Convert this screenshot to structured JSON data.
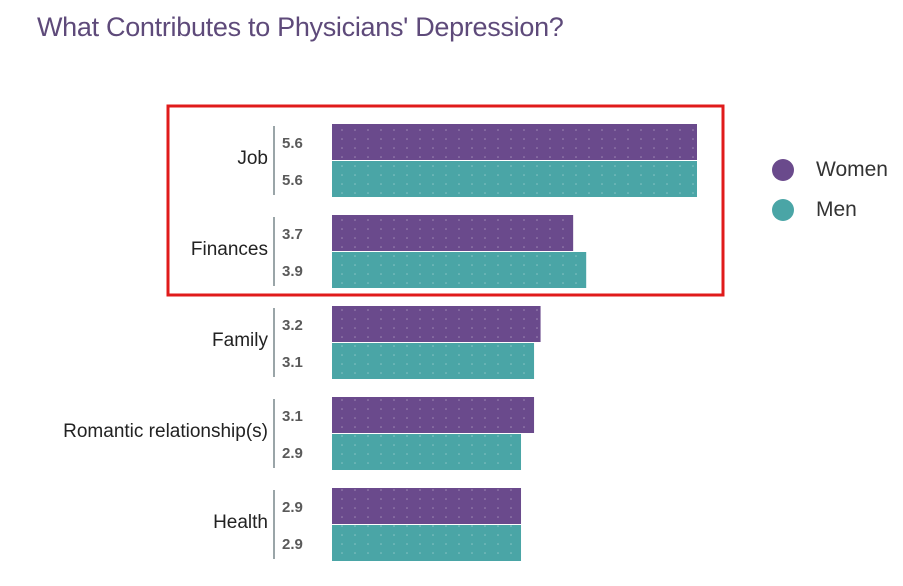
{
  "title": "What Contributes to Physicians' Depression?",
  "colors": {
    "women": "#6a4a8c",
    "men": "#4aa5a6",
    "highlight": "#e01b1b",
    "value_text": "#5a5a5a",
    "divider": "#9aa5a8"
  },
  "legend": [
    {
      "name": "Women",
      "color": "#6a4a8c"
    },
    {
      "name": "Men",
      "color": "#4aa5a6"
    }
  ],
  "chart_data": {
    "type": "bar",
    "orientation": "horizontal",
    "title": "What Contributes to Physicians' Depression?",
    "categories": [
      "Job",
      "Finances",
      "Family",
      "Romantic relationship(s)",
      "Health"
    ],
    "series": [
      {
        "name": "Women",
        "values": [
          5.6,
          3.7,
          3.2,
          3.1,
          2.9
        ]
      },
      {
        "name": "Men",
        "values": [
          5.6,
          3.9,
          3.1,
          2.9,
          2.9
        ]
      }
    ],
    "value_labels": [
      [
        "5.6",
        "5.6"
      ],
      [
        "3.7",
        "3.9"
      ],
      [
        "3.2",
        "3.1"
      ],
      [
        "3.1",
        "2.9"
      ],
      [
        "2.9",
        "2.9"
      ]
    ],
    "highlighted_categories": [
      "Job",
      "Finances"
    ],
    "legend_position": "right",
    "grid": false
  }
}
